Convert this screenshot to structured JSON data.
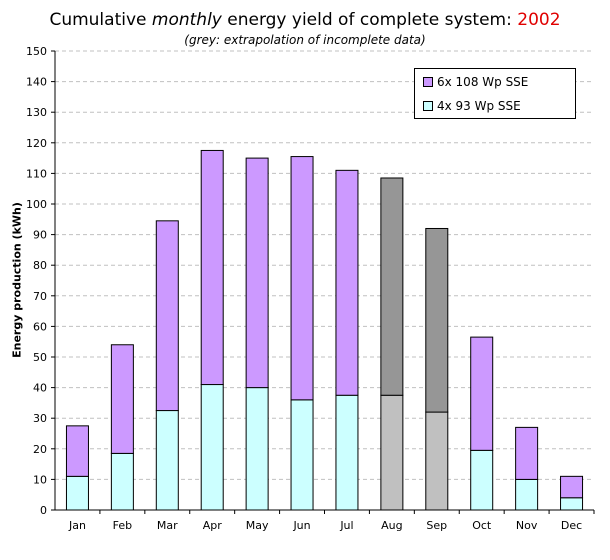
{
  "chart_data": {
    "type": "bar",
    "stacked": true,
    "title_parts": [
      "Cumulative ",
      "monthly",
      " energy yield of complete system: ",
      "2002"
    ],
    "subtitle": "(grey: extrapolation of incomplete data)",
    "ylabel": "Energy production (kWh)",
    "xlabel": "",
    "ylim": [
      0,
      150
    ],
    "yticks": [
      0,
      10,
      20,
      30,
      40,
      50,
      60,
      70,
      80,
      90,
      100,
      110,
      120,
      130,
      140,
      150
    ],
    "grid": true,
    "legend_position": "top-right",
    "categories": [
      "Jan",
      "Feb",
      "Mar",
      "Apr",
      "May",
      "Jun",
      "Jul",
      "Aug",
      "Sep",
      "Oct",
      "Nov",
      "Dec"
    ],
    "series": [
      {
        "name": "4x 93 Wp SSE",
        "values": [
          11,
          18.5,
          32.5,
          41,
          40,
          36,
          37.5,
          37.5,
          32,
          19.5,
          10,
          4
        ],
        "color": "#ccffff"
      },
      {
        "name": "6x 108 Wp SSE",
        "values": [
          16.5,
          35.5,
          62,
          76.5,
          75,
          79.5,
          73.5,
          71,
          60,
          37,
          17,
          7
        ],
        "color": "#cc99ff"
      }
    ],
    "extrapolated_categories": [
      "Aug",
      "Sep"
    ],
    "extrapolated_colors": {
      "4x 93 Wp SSE": "#c0c0c0",
      "6x 108 Wp SSE": "#969696"
    },
    "legend_order": [
      "6x 108 Wp SSE",
      "4x 93 Wp SSE"
    ]
  }
}
